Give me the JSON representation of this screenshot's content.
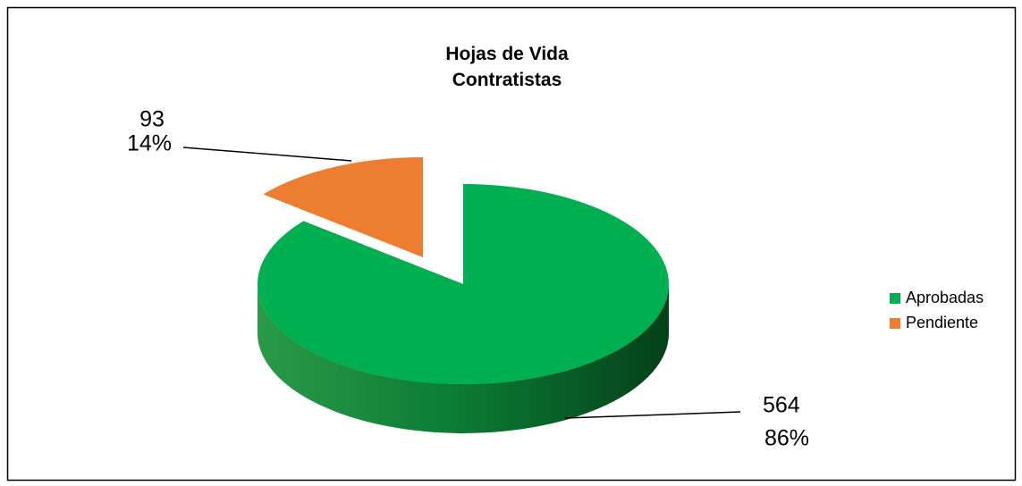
{
  "chart_data": {
    "type": "pie",
    "title": "Hojas de Vida Contratistas",
    "categories": [
      "Aprobadas",
      "Pendiente"
    ],
    "series": [
      {
        "name": "Hojas de Vida",
        "values": [
          564,
          93
        ]
      }
    ],
    "percent_labels": [
      "86%",
      "14%"
    ],
    "colors": [
      "#00b050",
      "#ed7d31"
    ],
    "legend": "right"
  }
}
